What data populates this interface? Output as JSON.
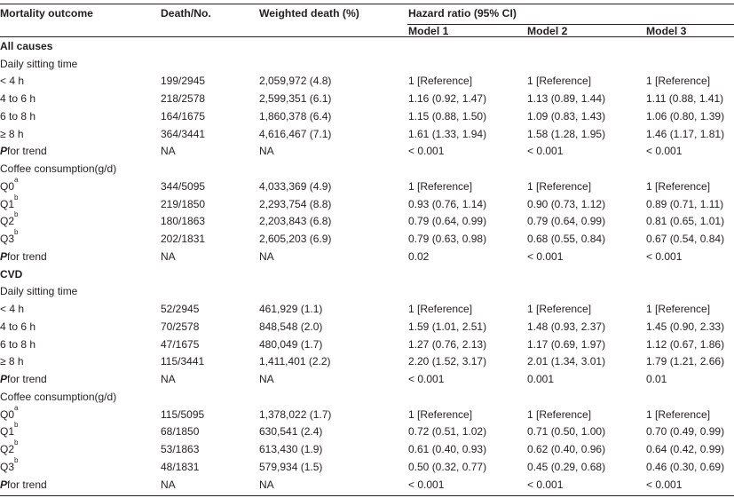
{
  "header": {
    "outcome": "Mortality outcome",
    "deaths": "Death/No.",
    "weighted": "Weighted death (%)",
    "hazard": "Hazard ratio (95% CI)",
    "model1": "Model 1",
    "model2": "Model 2",
    "model3": "Model 3"
  },
  "labels": {
    "all_causes": "All causes",
    "cvd": "CVD",
    "sitting": "Daily sitting time",
    "coffee": "Coffee consumption(g/d)",
    "p_italic": "P",
    "p_rest": "for trend"
  },
  "all": {
    "sit": [
      {
        "label": "< 4 h",
        "deaths": "199/2945",
        "weighted": "2,059,972 (4.8)",
        "m1": "1 [Reference]",
        "m2": "1 [Reference]",
        "m3": "1 [Reference]"
      },
      {
        "label": "4 to 6 h",
        "deaths": "218/2578",
        "weighted": "2,599,351 (6.1)",
        "m1": "1.16 (0.92, 1.47)",
        "m2": "1.13 (0.89, 1.44)",
        "m3": "1.11 (0.88, 1.41)"
      },
      {
        "label": "6 to 8 h",
        "deaths": "164/1675",
        "weighted": "1,860,378 (6.4)",
        "m1": "1.15 (0.88, 1.50)",
        "m2": "1.09 (0.83, 1.43)",
        "m3": "1.06 (0.80, 1.39)"
      },
      {
        "label": "≥ 8 h",
        "deaths": "364/3441",
        "weighted": "4,616,467 (7.1)",
        "m1": "1.61 (1.33, 1.94)",
        "m2": "1.58 (1.28, 1.95)",
        "m3": "1.46 (1.17, 1.81)"
      }
    ],
    "sit_trend": {
      "deaths": "NA",
      "weighted": "NA",
      "m1": "< 0.001",
      "m2": "< 0.001",
      "m3": "< 0.001"
    },
    "coffee": [
      {
        "q": "Q0",
        "sup": "a",
        "deaths": "344/5095",
        "weighted": "4,033,369 (4.9)",
        "m1": "1 [Reference]",
        "m2": "1 [Reference]",
        "m3": "1 [Reference]"
      },
      {
        "q": "Q1",
        "sup": "b",
        "deaths": "219/1850",
        "weighted": "2,293,754 (8.8)",
        "m1": "0.93 (0.76, 1.14)",
        "m2": "0.90 (0.73, 1.12)",
        "m3": "0.89 (0.71, 1.11)"
      },
      {
        "q": "Q2",
        "sup": "b",
        "deaths": "180/1863",
        "weighted": "2,203,843 (6.8)",
        "m1": "0.79 (0.64, 0.99)",
        "m2": "0.79 (0.64, 0.99)",
        "m3": "0.81 (0.65, 1.01)"
      },
      {
        "q": "Q3",
        "sup": "b",
        "deaths": "202/1831",
        "weighted": "2,605,203 (6.9)",
        "m1": "0.79 (0.63, 0.98)",
        "m2": "0.68 (0.55, 0.84)",
        "m3": "0.67 (0.54, 0.84)"
      }
    ],
    "coffee_trend": {
      "deaths": "NA",
      "weighted": "NA",
      "m1": "0.02",
      "m2": "< 0.001",
      "m3": "< 0.001"
    }
  },
  "cvd": {
    "sit": [
      {
        "label": "< 4 h",
        "deaths": "52/2945",
        "weighted": "461,929 (1.1)",
        "m1": "1 [Reference]",
        "m2": "1 [Reference]",
        "m3": "1 [Reference]"
      },
      {
        "label": "4 to 6 h",
        "deaths": "70/2578",
        "weighted": "848,548 (2.0)",
        "m1": "1.59 (1.01, 2.51)",
        "m2": "1.48 (0.93, 2.37)",
        "m3": "1.45 (0.90, 2.33)"
      },
      {
        "label": "6 to 8 h",
        "deaths": "47/1675",
        "weighted": "480,049 (1.7)",
        "m1": "1.27 (0.76, 2.13)",
        "m2": "1.17 (0.69, 1.97)",
        "m3": "1.12 (0.67, 1.86)"
      },
      {
        "label": "≥ 8 h",
        "deaths": "115/3441",
        "weighted": "1,411,401 (2.2)",
        "m1": "2.20 (1.52, 3.17)",
        "m2": "2.01 (1.34, 3.01)",
        "m3": "1.79 (1.21, 2.66)"
      }
    ],
    "sit_trend": {
      "deaths": "NA",
      "weighted": "NA",
      "m1": "< 0.001",
      "m2": "0.001",
      "m3": "0.01"
    },
    "coffee": [
      {
        "q": "Q0",
        "sup": "a",
        "deaths": "115/5095",
        "weighted": "1,378,022 (1.7)",
        "m1": "1 [Reference]",
        "m2": "1 [Reference]",
        "m3": "1 [Reference]"
      },
      {
        "q": "Q1",
        "sup": "b",
        "deaths": "68/1850",
        "weighted": "630,541 (2.4)",
        "m1": "0.72 (0.51, 1.02)",
        "m2": "0.71 (0.50, 1.00)",
        "m3": "0.70 (0.49, 0.99)"
      },
      {
        "q": "Q2",
        "sup": "b",
        "deaths": "53/1863",
        "weighted": "613,430 (1.9)",
        "m1": "0.61 (0.40, 0.93)",
        "m2": "0.62 (0.40, 0.96)",
        "m3": "0.64 (0.42, 0.99)"
      },
      {
        "q": "Q3",
        "sup": "b",
        "deaths": "48/1831",
        "weighted": "579,934 (1.5)",
        "m1": "0.50 (0.32, 0.77)",
        "m2": "0.45 (0.29, 0.68)",
        "m3": "0.46 (0.30, 0.69)"
      }
    ],
    "coffee_trend": {
      "deaths": "NA",
      "weighted": "NA",
      "m1": "< 0.001",
      "m2": "< 0.001",
      "m3": "< 0.001"
    }
  }
}
